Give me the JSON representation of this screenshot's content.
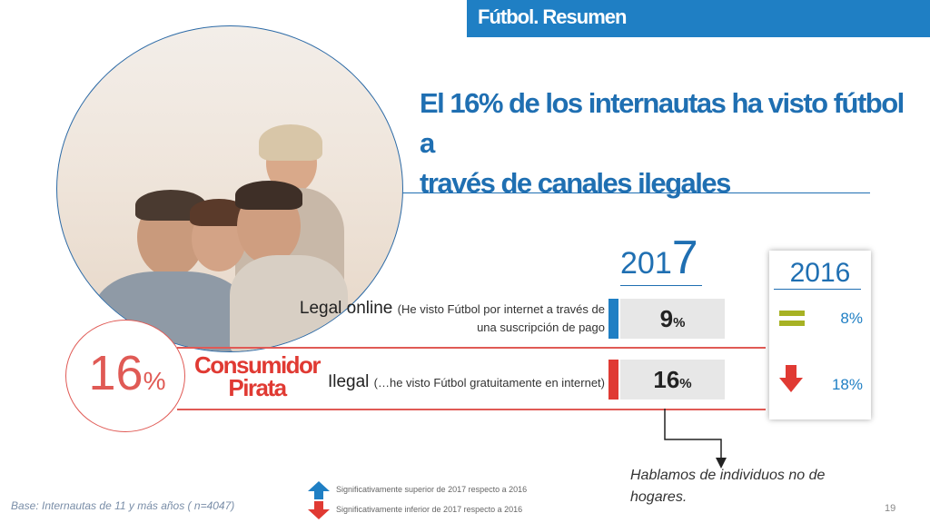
{
  "header": {
    "section_title": "Fútbol. Resumen"
  },
  "title": {
    "line1": "El 16% de los internautas ha visto fútbol a",
    "line2": "través de canales ilegales"
  },
  "consumer": {
    "percent": "16",
    "percent_sign": "%",
    "label_line1": "Consumidor",
    "label_line2": "Pirata"
  },
  "rows": [
    {
      "label": "Legal online",
      "detail_line1": "(He visto Fútbol por internet a través de",
      "detail_line2": "una suscripción de pago",
      "value_2017": "9",
      "unit": "%",
      "value_2016": "8%",
      "trend_2016": "equal",
      "accent": "#1f7fc4"
    },
    {
      "label": "Ilegal",
      "detail_line1": "(…he visto Fútbol gratuitamente en internet)",
      "value_2017": "16",
      "unit": "%",
      "value_2016": "18%",
      "trend_2016": "down",
      "accent": "#e03a33"
    }
  ],
  "years": {
    "current_prefix": "201",
    "current_suffix": "7",
    "previous": "2016"
  },
  "legend": {
    "up_label": "Significativamente superior de 2017  respecto a 2016",
    "down_label": "Significativamente inferior de 2017  respecto a 2016",
    "up_icon": "up-arrow-icon",
    "down_icon": "down-arrow-icon"
  },
  "footer": {
    "base": "Base: Internautas de 11 y más años ( n=4047)",
    "note_line1": "Hablamos de individuos no de",
    "note_line2": "hogares.",
    "page_number": "19"
  },
  "colors": {
    "blue": "#1f7fc4",
    "red": "#e03a33",
    "olive": "#a7b224",
    "grey_bar": "#e7e7e7"
  }
}
